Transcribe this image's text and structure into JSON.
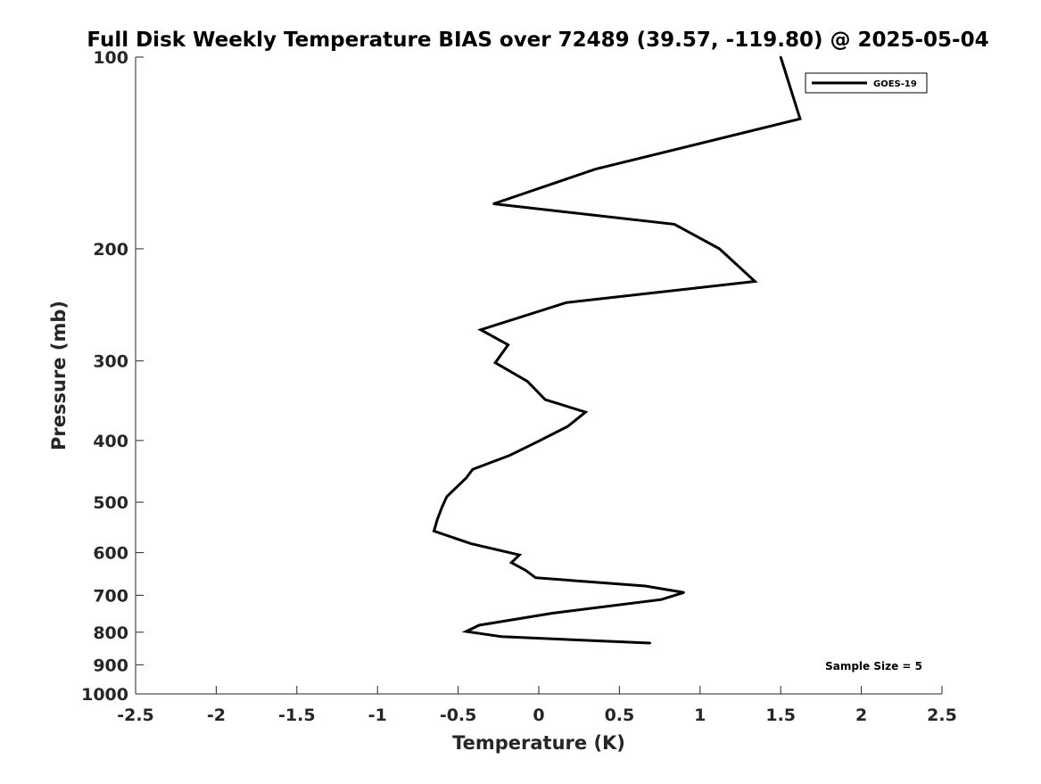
{
  "chart_data": {
    "type": "line",
    "title": "Full Disk Weekly Temperature BIAS over 72489 (39.57, -119.80) @ 2025-05-04",
    "xlabel": "Temperature (K)",
    "ylabel": "Pressure (mb)",
    "xlim": [
      -2.5,
      2.5
    ],
    "ylim": [
      1000,
      100
    ],
    "yscale": "log",
    "x_ticks": [
      "-2.5",
      "-2",
      "-1.5",
      "-1",
      "-0.5",
      "0",
      "0.5",
      "1",
      "1.5",
      "2",
      "2.5"
    ],
    "x_tick_values": [
      -2.5,
      -2,
      -1.5,
      -1,
      -0.5,
      0,
      0.5,
      1,
      1.5,
      2,
      2.5
    ],
    "y_ticks": [
      "100",
      "200",
      "300",
      "400",
      "500",
      "600",
      "700",
      "800",
      "900",
      "1000"
    ],
    "y_tick_values": [
      100,
      200,
      300,
      400,
      500,
      600,
      700,
      800,
      900,
      1000
    ],
    "grid": false,
    "legend": "top-right",
    "annotation": "Sample Size = 5",
    "series": [
      {
        "name": "GOES-19",
        "color": "#000000",
        "points": [
          [
            1.5,
            100
          ],
          [
            1.62,
            125
          ],
          [
            0.35,
            150
          ],
          [
            -0.28,
            170
          ],
          [
            0.84,
            183
          ],
          [
            1.12,
            200
          ],
          [
            1.34,
            225
          ],
          [
            0.17,
            243
          ],
          [
            -0.36,
            268
          ],
          [
            -0.19,
            283
          ],
          [
            -0.27,
            302
          ],
          [
            -0.07,
            323
          ],
          [
            0.04,
            345
          ],
          [
            0.29,
            361
          ],
          [
            0.18,
            380
          ],
          [
            0.0,
            401
          ],
          [
            -0.18,
            422
          ],
          [
            -0.41,
            444
          ],
          [
            -0.45,
            458
          ],
          [
            -0.57,
            490
          ],
          [
            -0.6,
            509
          ],
          [
            -0.63,
            533
          ],
          [
            -0.65,
            555
          ],
          [
            -0.42,
            581
          ],
          [
            -0.12,
            605
          ],
          [
            -0.17,
            622
          ],
          [
            -0.08,
            640
          ],
          [
            -0.02,
            657
          ],
          [
            0.66,
            677
          ],
          [
            0.9,
            693
          ],
          [
            0.76,
            711
          ],
          [
            0.08,
            747
          ],
          [
            -0.37,
            780
          ],
          [
            -0.45,
            798
          ],
          [
            -0.23,
            813
          ],
          [
            0.69,
            832
          ]
        ]
      }
    ]
  }
}
